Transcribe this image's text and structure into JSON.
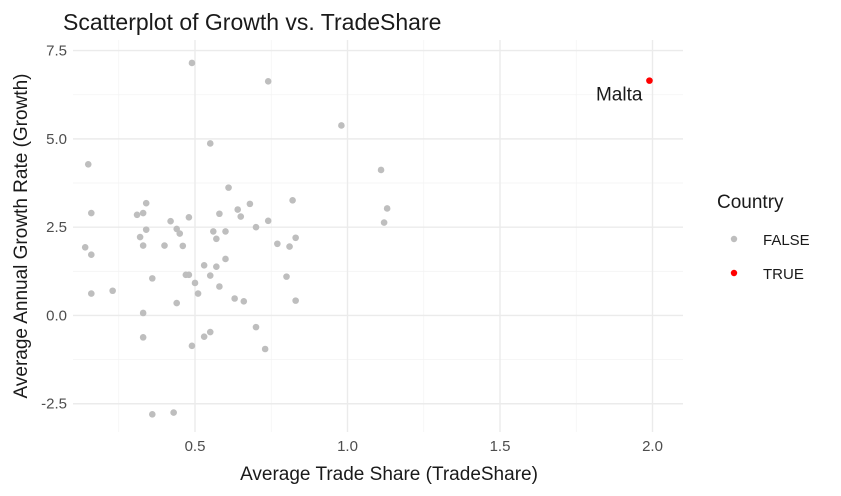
{
  "chart_data": {
    "type": "scatter",
    "title": "Scatterplot of Growth vs. TradeShare",
    "xlabel": "Average Trade Share (TradeShare)",
    "ylabel": "Average Annual Growth Rate (Growth)",
    "xlim": [
      0.1,
      2.1
    ],
    "ylim": [
      -3.3,
      7.8
    ],
    "xticks": [
      0.5,
      1.0,
      1.5,
      2.0
    ],
    "xtick_labels": [
      "0.5",
      "1.0",
      "1.5",
      "2.0"
    ],
    "yticks": [
      -2.5,
      0.0,
      2.5,
      5.0,
      7.5
    ],
    "ytick_labels": [
      "-2.5",
      "0.0",
      "2.5",
      "5.0",
      "7.5"
    ],
    "grid": true,
    "legend": {
      "title": "Country",
      "placement": "right",
      "entries": [
        {
          "label": "FALSE",
          "color": "#bebebe"
        },
        {
          "label": "TRUE",
          "color": "#ff0000"
        }
      ]
    },
    "series": [
      {
        "name": "FALSE",
        "color": "#bebebe",
        "points": [
          [
            0.49,
            7.15
          ],
          [
            0.74,
            6.63
          ],
          [
            0.98,
            5.38
          ],
          [
            0.55,
            4.87
          ],
          [
            0.15,
            4.28
          ],
          [
            1.11,
            4.12
          ],
          [
            0.61,
            3.62
          ],
          [
            0.82,
            3.26
          ],
          [
            0.34,
            3.18
          ],
          [
            0.68,
            3.16
          ],
          [
            1.13,
            3.03
          ],
          [
            0.64,
            3.0
          ],
          [
            0.16,
            2.9
          ],
          [
            0.33,
            2.9
          ],
          [
            0.31,
            2.85
          ],
          [
            0.58,
            2.88
          ],
          [
            0.48,
            2.78
          ],
          [
            0.65,
            2.8
          ],
          [
            0.42,
            2.67
          ],
          [
            0.74,
            2.68
          ],
          [
            1.12,
            2.63
          ],
          [
            0.7,
            2.5
          ],
          [
            0.44,
            2.45
          ],
          [
            0.34,
            2.43
          ],
          [
            0.56,
            2.38
          ],
          [
            0.6,
            2.38
          ],
          [
            0.45,
            2.32
          ],
          [
            0.32,
            2.22
          ],
          [
            0.83,
            2.2
          ],
          [
            0.57,
            2.17
          ],
          [
            0.77,
            2.03
          ],
          [
            0.14,
            1.93
          ],
          [
            0.4,
            1.98
          ],
          [
            0.33,
            1.98
          ],
          [
            0.46,
            1.97
          ],
          [
            0.81,
            1.95
          ],
          [
            0.16,
            1.72
          ],
          [
            0.6,
            1.6
          ],
          [
            0.53,
            1.42
          ],
          [
            0.57,
            1.38
          ],
          [
            0.47,
            1.15
          ],
          [
            0.48,
            1.15
          ],
          [
            0.55,
            1.13
          ],
          [
            0.8,
            1.1
          ],
          [
            0.36,
            1.05
          ],
          [
            0.5,
            0.92
          ],
          [
            0.58,
            0.82
          ],
          [
            0.23,
            0.7
          ],
          [
            0.16,
            0.62
          ],
          [
            0.51,
            0.62
          ],
          [
            0.63,
            0.48
          ],
          [
            0.66,
            0.4
          ],
          [
            0.83,
            0.42
          ],
          [
            0.44,
            0.35
          ],
          [
            0.33,
            0.07
          ],
          [
            0.7,
            -0.33
          ],
          [
            0.55,
            -0.47
          ],
          [
            0.53,
            -0.6
          ],
          [
            0.33,
            -0.62
          ],
          [
            0.49,
            -0.86
          ],
          [
            0.73,
            -0.95
          ],
          [
            0.36,
            -2.8
          ],
          [
            0.43,
            -2.75
          ]
        ]
      },
      {
        "name": "TRUE",
        "color": "#ff0000",
        "points": [
          [
            1.99,
            6.65
          ]
        ]
      }
    ],
    "annotations": [
      {
        "text": "Malta",
        "x": 1.99,
        "y": 6.65
      }
    ]
  }
}
